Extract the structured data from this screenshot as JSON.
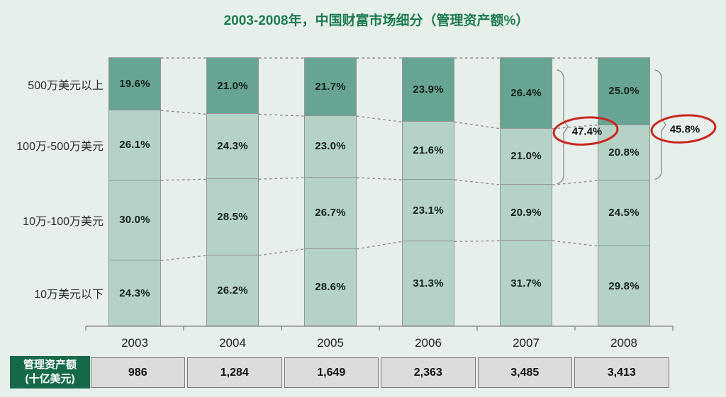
{
  "title": "2003-2008年，中国财富市场细分（管理资产额%）",
  "colors": {
    "background": "#e6efea",
    "title_green": "#1e7b4f",
    "header_green": "#176a49",
    "top_segment": "#67a493",
    "segment": "#b5d2c6",
    "bar_border": "#949494",
    "line_gray": "#8a8a8a",
    "annotation_red": "#c9271f",
    "cell_gray": "#dcdcdc"
  },
  "chart_data": {
    "type": "bar",
    "stacked": true,
    "title": "2003-2008年，中国财富市场细分（管理资产额%）",
    "categories": [
      "2003",
      "2004",
      "2005",
      "2006",
      "2007",
      "2008"
    ],
    "row_labels": [
      "500万美元以上",
      "100万-500万美元",
      "10万-100万美元",
      "10万美元以下"
    ],
    "series": [
      {
        "name": "500万美元以上",
        "values": [
          19.6,
          21.0,
          21.7,
          23.9,
          26.4,
          25.0
        ]
      },
      {
        "name": "100万-500万美元",
        "values": [
          26.1,
          24.3,
          23.0,
          21.6,
          21.0,
          20.8
        ]
      },
      {
        "name": "10万-100万美元",
        "values": [
          30.0,
          28.5,
          26.7,
          23.1,
          20.9,
          24.5
        ]
      },
      {
        "name": "10万美元以下",
        "values": [
          24.3,
          26.2,
          28.6,
          31.3,
          31.7,
          29.8
        ]
      }
    ],
    "unit": "%",
    "ylim": [
      0,
      100
    ],
    "legend": "none",
    "grid": "off",
    "annotations": [
      {
        "category": "2007",
        "label": "47.4%",
        "segments": [
          0,
          1
        ],
        "note": "sum of top two segments"
      },
      {
        "category": "2008",
        "label": "45.8%",
        "segments": [
          0,
          1
        ],
        "note": "sum of top two segments"
      }
    ]
  },
  "table": {
    "header": [
      "管理资产额",
      "(十亿美元)"
    ],
    "values": [
      "986",
      "1,284",
      "1,649",
      "2,363",
      "3,485",
      "3,413"
    ]
  }
}
